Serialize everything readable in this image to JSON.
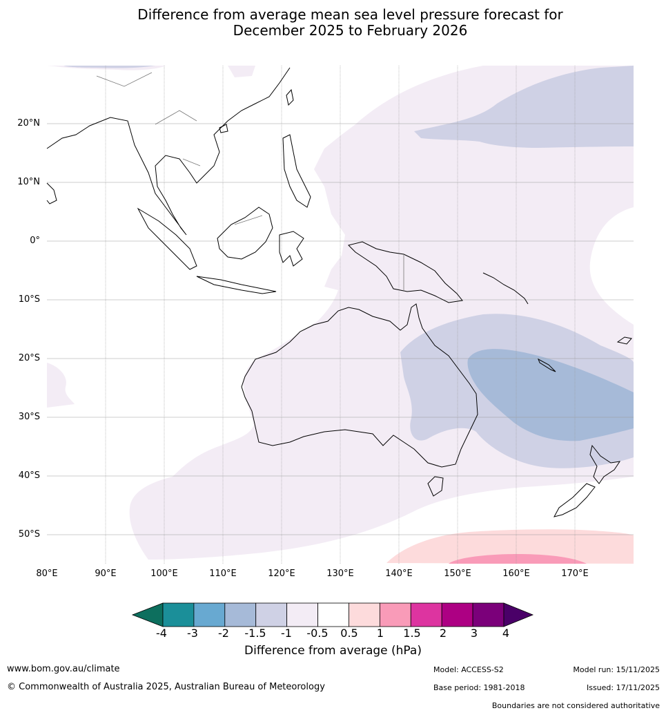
{
  "title": {
    "line1": "Difference from average mean sea level pressure forecast for",
    "line2": "December 2025 to February 2026"
  },
  "map": {
    "lat_labels": [
      "20°N",
      "10°N",
      "0°",
      "10°S",
      "20°S",
      "30°S",
      "40°S",
      "50°S"
    ],
    "lon_labels": [
      "80°E",
      "90°E",
      "100°E",
      "110°E",
      "120°E",
      "130°E",
      "140°E",
      "150°E",
      "160°E",
      "170°E"
    ],
    "extent": {
      "lon_min": 80,
      "lon_max": 180,
      "lat_min": -55,
      "lat_max": 30
    }
  },
  "colorbar": {
    "title": "Difference from average (hPa)",
    "ticks": [
      "-4",
      "-3",
      "-2",
      "-1.5",
      "-1",
      "-0.5",
      "0.5",
      "1",
      "1.5",
      "2",
      "3",
      "4"
    ],
    "colors": [
      "#0d6f5e",
      "#1b8f99",
      "#68a9d1",
      "#a6bad8",
      "#cfd1e5",
      "#f3ecf5",
      "#ffffff",
      "#fddbdc",
      "#f99bb8",
      "#dd34a0",
      "#ad0083",
      "#7b007a",
      "#4a0068"
    ]
  },
  "footer": {
    "website": "www.bom.gov.au/climate",
    "copyright": "© Commonwealth of Australia 2025, Australian Bureau of Meteorology",
    "model": "Model: ACCESS-S2",
    "base_period": "Base period: 1981-2018",
    "model_run": "Model run: 15/11/2025",
    "issued": "Issued: 17/11/2025",
    "disclaimer": "Boundaries are not considered authoritative"
  }
}
